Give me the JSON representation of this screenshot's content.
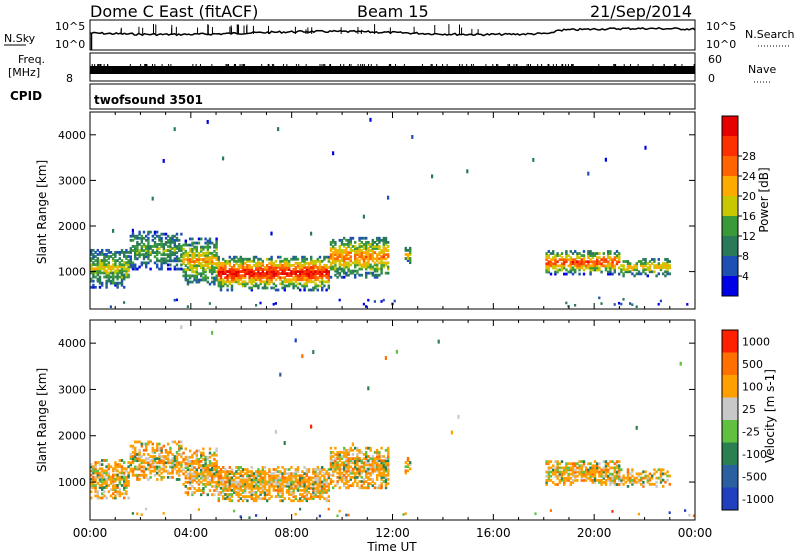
{
  "header": {
    "station": "Dome C East (fitACF)",
    "beam": "Beam 15",
    "date": "21/Sep/2014"
  },
  "strips": {
    "nsky_label": "N.Sky",
    "nsky_top": "10^5",
    "nsky_bottom": "10^0",
    "nsearch_label": "N.Search",
    "nsearch_top": "10^5",
    "nsearch_bottom": "10^0",
    "freq_label": "Freq.",
    "freq_unit": "[MHz]",
    "freq_tick": "8",
    "nave_label": "Nave",
    "nave_top": "60",
    "nave_bottom": "0",
    "cpid_label": "CPID",
    "cpid_value": "twofsound 3501"
  },
  "chart_data": [
    {
      "type": "heatmap",
      "name": "power",
      "ylabel": "Slant Range [km]",
      "xlabel": "",
      "xticks": [
        "00:00",
        "04:00",
        "08:00",
        "12:00",
        "16:00",
        "20:00",
        "00:00"
      ],
      "x_range_hours": [
        0,
        24
      ],
      "yticks": [
        1000,
        2000,
        3000,
        4000
      ],
      "ylim": [
        180,
        4500
      ],
      "colorbar": {
        "label": "Power [dB]",
        "ticks": [
          "4",
          "8",
          "12",
          "16",
          "20",
          "24",
          "28"
        ]
      },
      "colors": [
        "#0000e6",
        "#1e50b4",
        "#2a7a5a",
        "#3a9a3a",
        "#c8c800",
        "#ffaa00",
        "#ff6400",
        "#ff3000",
        "#e60000"
      ]
    },
    {
      "type": "heatmap",
      "name": "velocity",
      "ylabel": "Slant Range [km]",
      "xlabel": "Time UT",
      "xticks": [
        "00:00",
        "04:00",
        "08:00",
        "12:00",
        "16:00",
        "20:00",
        "00:00"
      ],
      "x_range_hours": [
        0,
        24
      ],
      "yticks": [
        1000,
        2000,
        3000,
        4000
      ],
      "ylim": [
        180,
        4500
      ],
      "colorbar": {
        "label": "Velocity [m s-1]",
        "ticks": [
          "1000",
          "500",
          "100",
          "25",
          "-25",
          "-100",
          "-500",
          "-1000"
        ]
      },
      "colors": [
        "#2040c0",
        "#2a60a0",
        "#2a8050",
        "#60c040",
        "#c8c8c8",
        "#ffa000",
        "#ff7000",
        "#ff2000"
      ]
    }
  ]
}
